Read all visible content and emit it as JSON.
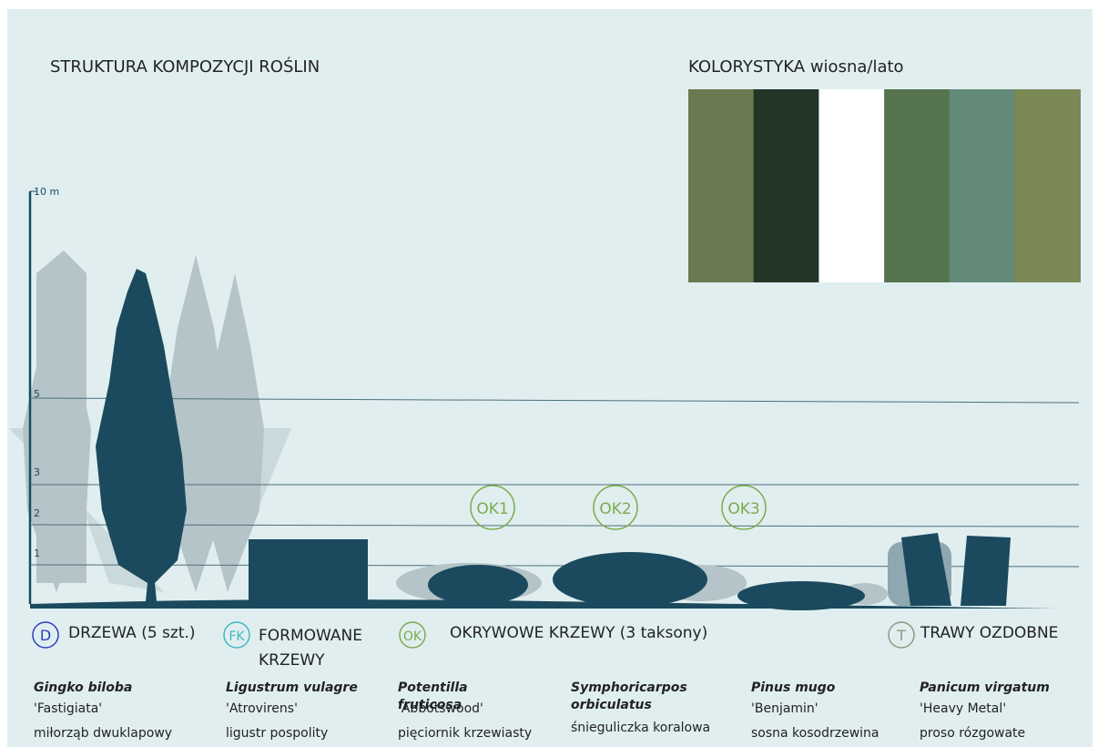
{
  "header": {
    "title": "STRUKTURA KOMPOZYCJI ROŚLIN"
  },
  "palette": {
    "title": "KOLORYSTYKA wiosna/lato",
    "colors": [
      "#6a7a50",
      "#233526",
      "#ffffff",
      "#56734f",
      "#638a78",
      "#7b8a55"
    ]
  },
  "scale": {
    "labels": [
      "10 m",
      "5",
      "3",
      "2",
      "1"
    ]
  },
  "markers": [
    "OK1",
    "OK2",
    "OK3"
  ],
  "groups": [
    {
      "icon": "D",
      "label": "DRZEWA (5 szt.)"
    },
    {
      "icon": "FK",
      "label": "FORMOWANE KRZEWY"
    },
    {
      "icon": "OK",
      "label": "OKRYWOWE KRZEWY  (3 taksony)"
    },
    {
      "icon": "T",
      "label": "TRAWY OZDOBNE"
    }
  ],
  "plants": [
    {
      "latin": "Gingko biloba",
      "cultivar": "'Fastigiata'",
      "common": "miłorząb dwuklapowy"
    },
    {
      "latin": "Ligustrum vulagre",
      "cultivar": "'Atrovirens'",
      "common": "ligustr pospolity"
    },
    {
      "latin": "Potentilla fruticosa",
      "cultivar": "'Abbotswood'",
      "common": "pięciornik krzewiasty"
    },
    {
      "latin": "Symphoricarpos orbiculatus",
      "common": "śnieguliczka koralowa"
    },
    {
      "latin": "Pinus mugo",
      "cultivar": "'Benjamin'",
      "common": "sosna kosodrzewina"
    },
    {
      "latin": "Panicum virgatum",
      "cultivar": "'Heavy Metal'",
      "common": "proso rózgowate"
    }
  ]
}
